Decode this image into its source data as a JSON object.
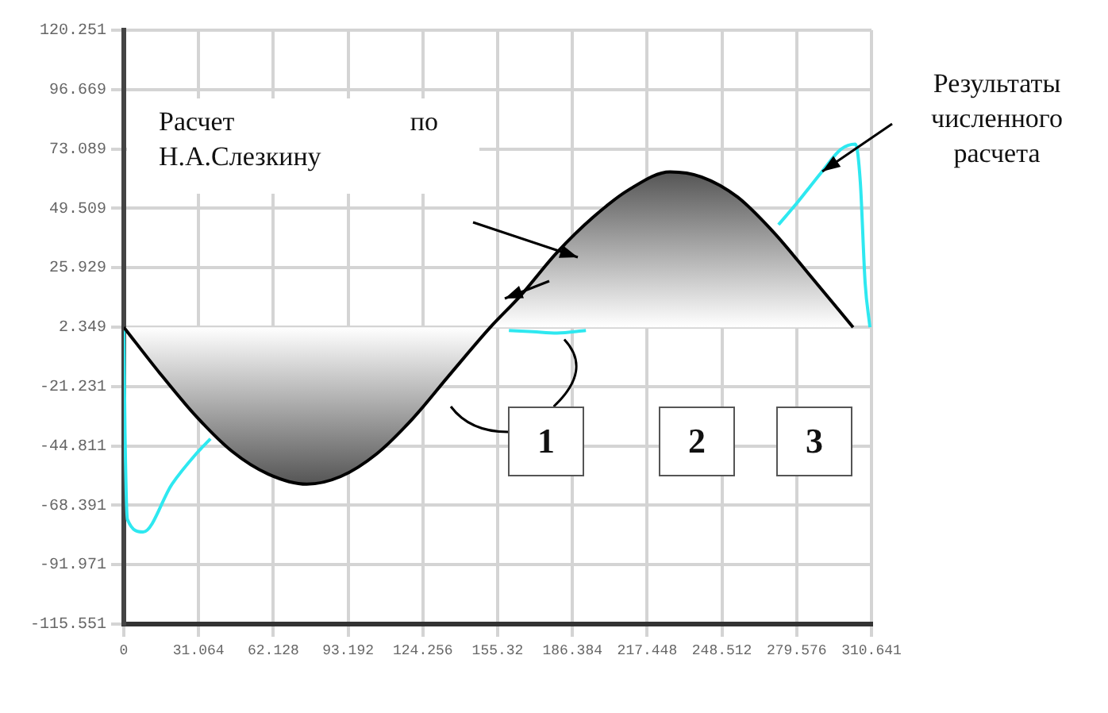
{
  "chart_data": {
    "type": "line",
    "xlim": [
      0,
      310.641
    ],
    "xticks": [
      0,
      31.064,
      62.128,
      93.192,
      124.256,
      155.32,
      186.384,
      217.448,
      248.512,
      279.576,
      310.641
    ],
    "ylim": [
      -115.551,
      120.251
    ],
    "yticks": [
      -115.551,
      -91.971,
      -68.391,
      -44.811,
      -21.231,
      2.349,
      25.929,
      49.509,
      73.089,
      96.669,
      120.251
    ],
    "grid": true,
    "legend": false,
    "marker": "none",
    "line_style": "solid",
    "series": [
      {
        "type": "area",
        "color": "#000000",
        "x": [
          0,
          15,
          30,
          45,
          60,
          76,
          90,
          105,
          120,
          135,
          152,
          165,
          180,
          195,
          210,
          227,
          240,
          255,
          270,
          285,
          303
        ],
        "values": [
          2.3,
          -16,
          -33,
          -47,
          -56,
          -60,
          -57,
          -48,
          -34,
          -17,
          2,
          15,
          32,
          46,
          57,
          64,
          62,
          54,
          40,
          23,
          2.3
        ]
      },
      {
        "color": "#2ee8f0",
        "x": [
          0,
          0.5,
          1.5,
          8,
          20,
          30,
          36,
          60,
          160,
          170,
          180,
          192,
          230,
          272,
          280,
          290,
          298,
          304,
          306,
          308,
          310
        ],
        "values": [
          2.3,
          -40,
          -74,
          -79,
          -60,
          -48,
          -42,
          null,
          1,
          0.5,
          0,
          1,
          null,
          43,
          52,
          64,
          73,
          75,
          60,
          20,
          2.3
        ]
      }
    ],
    "annotations": [
      "Расчет по Н.А.Слезкину",
      "Результаты численного расчета",
      {
        "text": "1",
        "x": 183,
        "y": 0
      },
      "2",
      "3"
    ]
  }
}
